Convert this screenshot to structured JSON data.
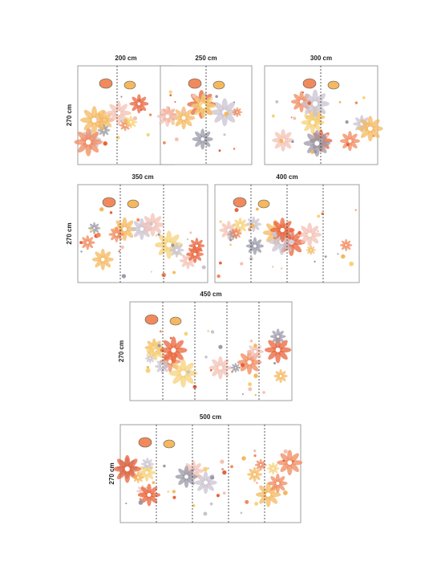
{
  "panels": [
    {
      "width": "200 cm",
      "height": "270 cm"
    },
    {
      "width": "250 cm"
    },
    {
      "width": "300 cm"
    },
    {
      "width": "350 cm",
      "height": "270 cm"
    },
    {
      "width": "400 cm"
    },
    {
      "width": "450 cm",
      "height": "270 cm"
    },
    {
      "width": "500 cm",
      "height": "270 cm"
    }
  ]
}
